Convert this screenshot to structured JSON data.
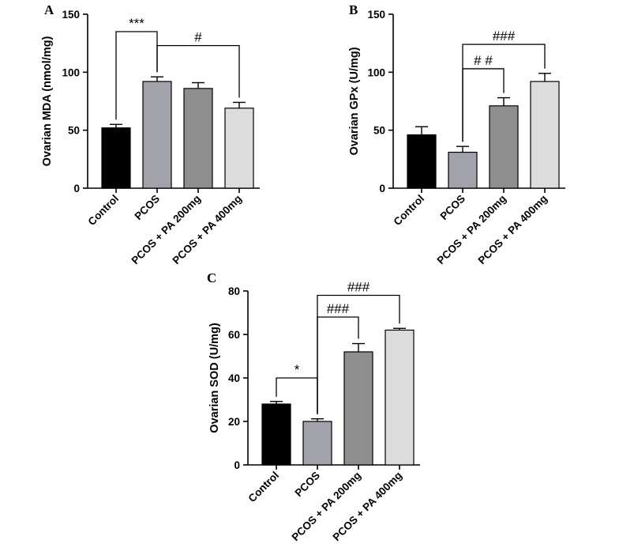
{
  "chart_data": [
    {
      "type": "bar",
      "panel": "A",
      "ylabel": "Ovarian MDA (nmol/mg)",
      "ylim": [
        0,
        150
      ],
      "yticks": [
        "0",
        "50",
        "100",
        "150"
      ],
      "categories": [
        "Control",
        "PCOS",
        "PCOS + PA 200mg",
        "PCOS + PA 400mg"
      ],
      "values": [
        52,
        92,
        86,
        69
      ],
      "errors": [
        3,
        4,
        5,
        5
      ],
      "colors": [
        "#000000",
        "#a2a2ab",
        "#8e8e8e",
        "#dcdcdc"
      ],
      "annotations": [
        {
          "label": "***",
          "from": 0,
          "to": 1,
          "level": 135
        },
        {
          "label": "#",
          "from": 1,
          "to": 3,
          "level": 123
        }
      ]
    },
    {
      "type": "bar",
      "panel": "B",
      "ylabel": "Ovarian GPx (U/mg)",
      "ylim": [
        0,
        150
      ],
      "yticks": [
        "0",
        "50",
        "100",
        "150"
      ],
      "categories": [
        "Control",
        "PCOS",
        "PCOS + PA 200mg",
        "PCOS + PA 400mg"
      ],
      "values": [
        46,
        31,
        71,
        92
      ],
      "errors": [
        7,
        5,
        7,
        7
      ],
      "colors": [
        "#000000",
        "#a2a2ab",
        "#8e8e8e",
        "#dcdcdc"
      ],
      "annotations": [
        {
          "label": "# #",
          "from": 1,
          "to": 2,
          "level": 103
        },
        {
          "label": "###",
          "from": 1,
          "to": 3,
          "level": 124
        }
      ]
    },
    {
      "type": "bar",
      "panel": "C",
      "ylabel": "Ovarian SOD (U/mg)",
      "ylim": [
        0,
        80
      ],
      "yticks": [
        "0",
        "20",
        "40",
        "60",
        "80"
      ],
      "categories": [
        "Control",
        "PCOS",
        "PCOS + PA 200mg",
        "PCOS + PA 400mg"
      ],
      "values": [
        28,
        20,
        52,
        62
      ],
      "errors": [
        1.2,
        1.2,
        3.8,
        0.8
      ],
      "colors": [
        "#000000",
        "#a2a2ab",
        "#8e8e8e",
        "#dcdcdc"
      ],
      "annotations": [
        {
          "label": "*",
          "from": 0,
          "to": 1,
          "level": 40
        },
        {
          "label": "###",
          "from": 1,
          "to": 2,
          "level": 68
        },
        {
          "label": "###",
          "from": 1,
          "to": 3,
          "level": 78
        }
      ]
    }
  ]
}
